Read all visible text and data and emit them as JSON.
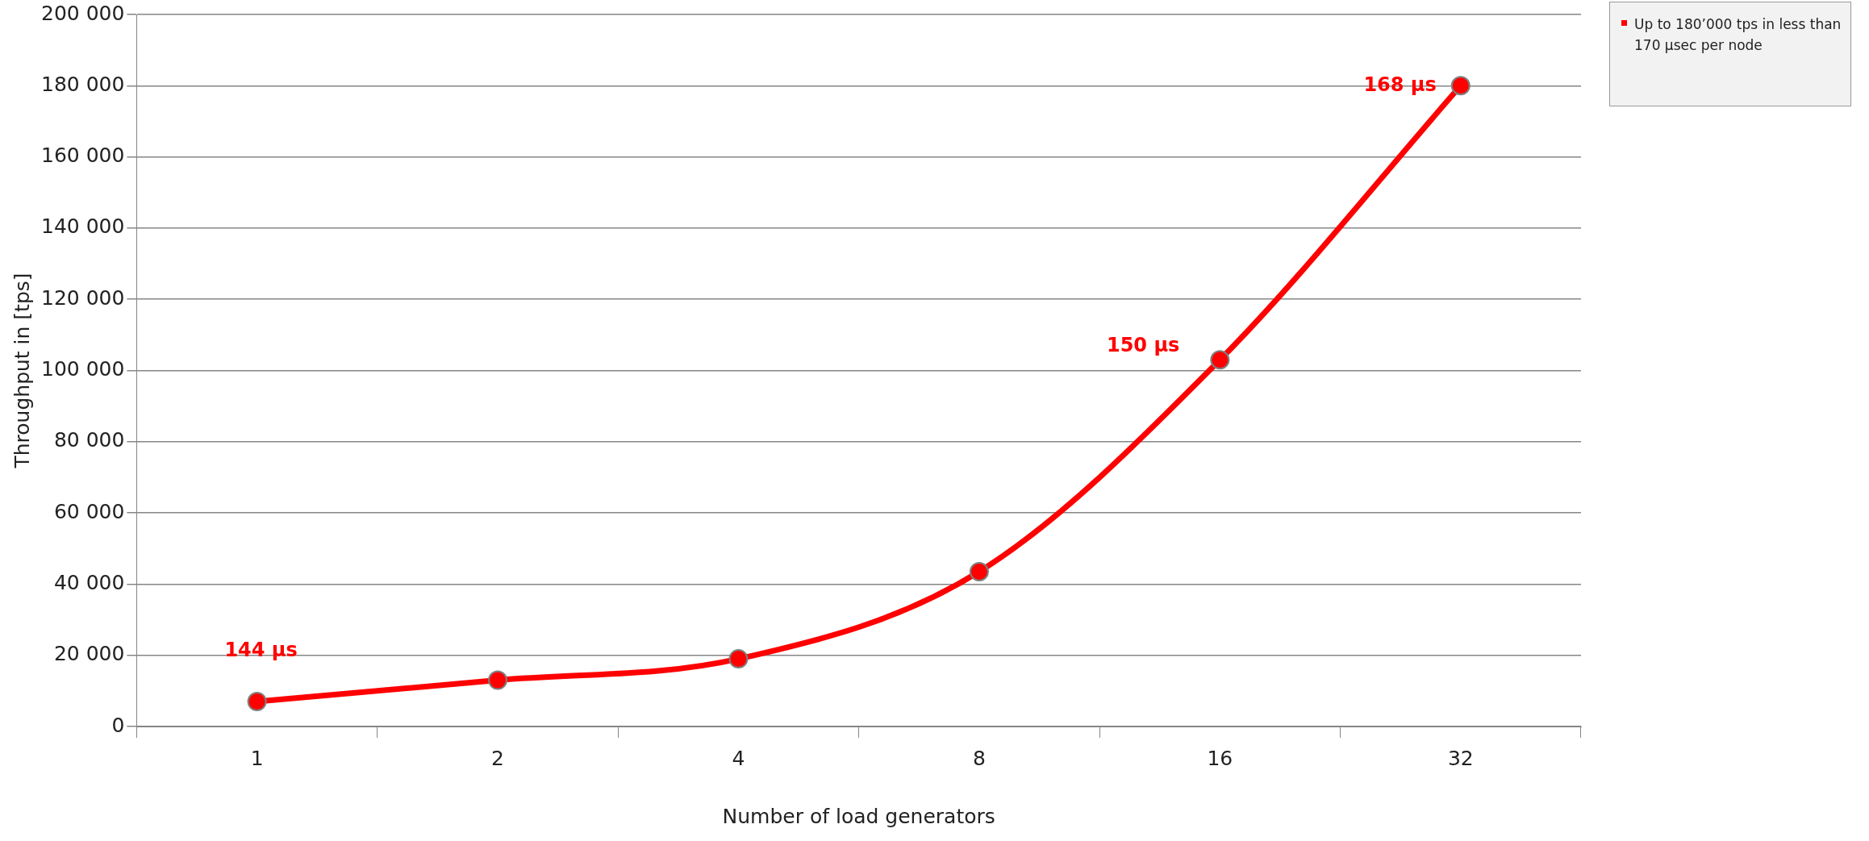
{
  "chart_data": {
    "type": "line",
    "xlabel": "Number of load generators",
    "ylabel": "Throughput in [tps]",
    "categories": [
      "1",
      "2",
      "4",
      "8",
      "16",
      "32"
    ],
    "series": [
      {
        "color": "#ff0000",
        "values": [
          7000,
          13000,
          19000,
          43500,
          103000,
          180000
        ]
      }
    ],
    "ylim": [
      0,
      200000
    ],
    "yticks": [
      {
        "value": 0,
        "label": "0"
      },
      {
        "value": 20000,
        "label": "20 000"
      },
      {
        "value": 40000,
        "label": "40 000"
      },
      {
        "value": 60000,
        "label": "60 000"
      },
      {
        "value": 80000,
        "label": "80 000"
      },
      {
        "value": 100000,
        "label": "100 000"
      },
      {
        "value": 120000,
        "label": "120 000"
      },
      {
        "value": 140000,
        "label": "140 000"
      },
      {
        "value": 160000,
        "label": "160 000"
      },
      {
        "value": 180000,
        "label": "180 000"
      },
      {
        "value": 200000,
        "label": "200 000"
      }
    ],
    "grid": "y",
    "legend": false,
    "marker": "circle",
    "line_style": "solid",
    "annotations": [
      {
        "text": "144 µs",
        "x": "1",
        "y": 7000
      },
      {
        "text": "150 µs",
        "x": "16",
        "y": 103000
      },
      {
        "text": "168 µs",
        "x": "32",
        "y": 180000
      },
      "Up to 180’000 tps in less than 170 µsec per node"
    ]
  }
}
